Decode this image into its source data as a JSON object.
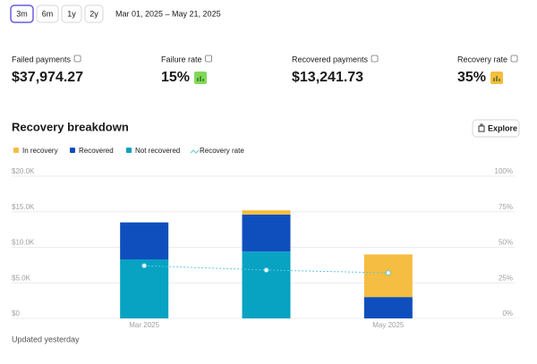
{
  "filters": {
    "options": [
      "3m",
      "6m",
      "1y",
      "2y"
    ],
    "selected": 0
  },
  "date_range": "Mar 01, 2025 – May 21, 2025",
  "metrics": [
    {
      "label": "Failed payments",
      "value": "$37,974.27"
    },
    {
      "label": "Failure rate",
      "value": "15%",
      "badge_color": "#7ed957"
    },
    {
      "label": "Recovered payments",
      "value": "$13,241.73"
    },
    {
      "label": "Recovery rate",
      "value": "35%",
      "badge_color": "#f5bd41"
    }
  ],
  "section_title": "Recovery breakdown",
  "explore": "Explore",
  "chart_data": {
    "type": "bar",
    "stacked": true,
    "categories": [
      "Mar 2025",
      null,
      "May 2025"
    ],
    "series": [
      {
        "name": "In recovery",
        "color": "#f5bd41",
        "values": [
          0,
          600,
          6000
        ]
      },
      {
        "name": "Recovered",
        "color": "#0f4fbd",
        "values": [
          5200,
          5200,
          3000
        ]
      },
      {
        "name": "Not recovered",
        "color": "#08a2c2",
        "values": [
          8300,
          9400,
          0
        ]
      },
      {
        "name": "Recovery rate",
        "color": "#5bc8e0",
        "type": "line",
        "axis": "y2",
        "values": [
          37,
          34,
          32
        ]
      }
    ],
    "ylim": [
      0,
      20000
    ],
    "yticks": [
      {
        "value": 0,
        "label": "$0"
      },
      {
        "value": 5000,
        "label": "$5.0K"
      },
      {
        "value": 10000,
        "label": "$10.0K"
      },
      {
        "value": 15000,
        "label": "$15.0K"
      },
      {
        "value": 20000,
        "label": "$20.0K"
      }
    ],
    "y2lim": [
      0,
      100
    ],
    "y2ticks": [
      {
        "value": 0,
        "label": "0%"
      },
      {
        "value": 25,
        "label": "25%"
      },
      {
        "value": 50,
        "label": "50%"
      },
      {
        "value": 75,
        "label": "75%"
      },
      {
        "value": 100,
        "label": "100%"
      }
    ],
    "grid": true
  },
  "footer": "Updated yesterday"
}
